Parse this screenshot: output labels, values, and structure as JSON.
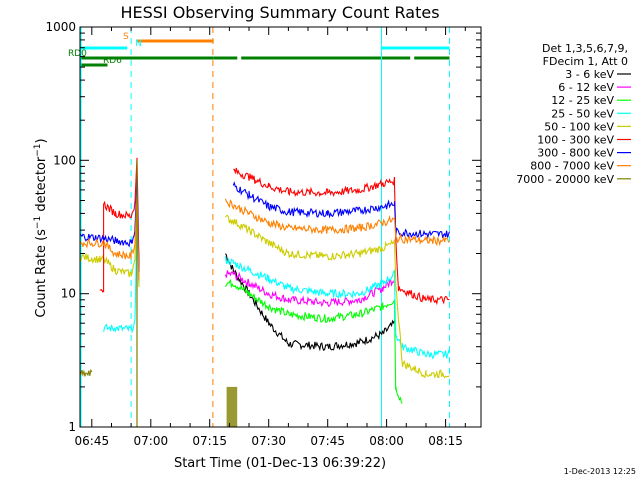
{
  "chart_data": {
    "type": "line",
    "title": "HESSI Observing Summary Count Rates",
    "xlabel": "Start Time (01-Dec-13 06:39:22)",
    "ylabel": "Count Rate (s",
    "ylabel_exp1": "−1",
    "ylabel_mid": " detector",
    "ylabel_exp2": "−1",
    "ylabel_end": ")",
    "y_scale": "log",
    "ylim": [
      1,
      1000
    ],
    "xlim_minutes": [
      -3,
      99
    ],
    "x_ticks": [
      {
        "label": "06:45",
        "m": 0
      },
      {
        "label": "07:00",
        "m": 15
      },
      {
        "label": "07:15",
        "m": 30
      },
      {
        "label": "07:30",
        "m": 45
      },
      {
        "label": "07:45",
        "m": 60
      },
      {
        "label": "08:00",
        "m": 75
      },
      {
        "label": "08:15",
        "m": 90
      }
    ],
    "y_ticks": [
      {
        "label": "1",
        "v": 1
      },
      {
        "label": "10",
        "v": 10
      },
      {
        "label": "100",
        "v": 100
      },
      {
        "label": "1000",
        "v": 1000
      }
    ],
    "footer_date": "1-Dec-2013 12:25",
    "legend_header": [
      "Det 1,3,5,6,7,9,",
      "FDecim 1, Att 0"
    ],
    "series": [
      {
        "name": "3 - 6 keV",
        "color": "#000000"
      },
      {
        "name": "6 - 12 keV",
        "color": "#ff00ff"
      },
      {
        "name": "12 - 25 keV",
        "color": "#00ff00"
      },
      {
        "name": "25 - 50 keV",
        "color": "#00ffff"
      },
      {
        "name": "50 - 100 keV",
        "color": "#cccc00"
      },
      {
        "name": "100 - 300 keV",
        "color": "#ff0000"
      },
      {
        "name": "300 - 800 keV",
        "color": "#0000ff"
      },
      {
        "name": "800 - 7000 keV",
        "color": "#ff8000"
      },
      {
        "name": "7000 - 20000 keV",
        "color": "#808000"
      }
    ],
    "flags": [
      {
        "label": "S",
        "color": "#ff8000",
        "segments": [
          [
            11.5,
            31
          ]
        ]
      },
      {
        "label": "N",
        "color": "#00ffff",
        "segments": [
          [
            -3,
            9
          ],
          [
            73.5,
            91
          ]
        ]
      },
      {
        "label": "RD0",
        "color": "#008000",
        "segments": [
          [
            -3,
            31
          ],
          [
            31,
            37
          ],
          [
            38,
            81
          ],
          [
            82,
            91
          ]
        ]
      },
      {
        "label": "RD6",
        "color": "#008000",
        "segments": [
          [
            -3,
            4
          ]
        ]
      }
    ],
    "vlines": [
      {
        "m": -3,
        "color": "#00ffff",
        "style": "solid"
      },
      {
        "m": 10,
        "color": "#00ffff",
        "style": "dashed"
      },
      {
        "m": 30.8,
        "color": "#ff8000",
        "style": "dashed"
      },
      {
        "m": 73.7,
        "color": "#00ffff",
        "style": "solid"
      },
      {
        "m": 91,
        "color": "#00ffff",
        "style": "dashed"
      }
    ]
  }
}
